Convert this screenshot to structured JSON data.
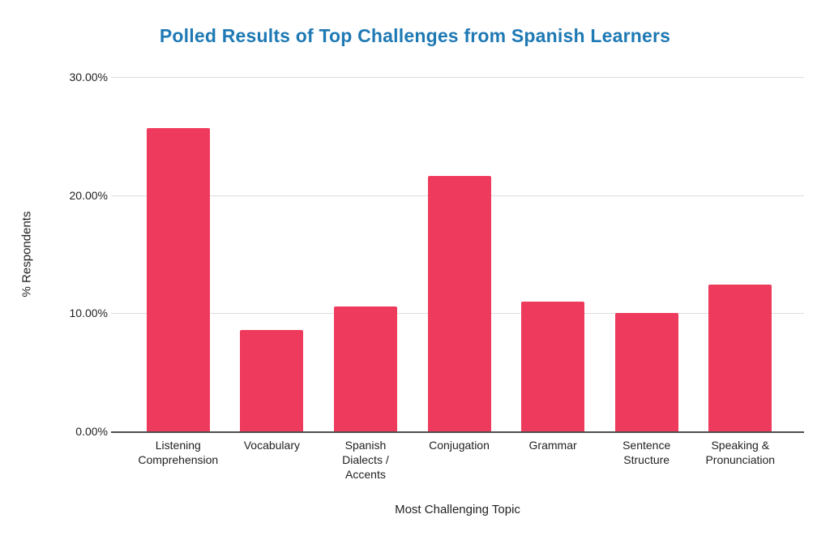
{
  "chart_data": {
    "type": "bar",
    "title": "Polled Results of Top Challenges from Spanish Learners",
    "xlabel": "Most Challenging Topic",
    "ylabel": "% Respondents",
    "categories": [
      "Listening\nComprehension",
      "Vocabulary",
      "Spanish\nDialects /\nAccents",
      "Conjugation",
      "Grammar",
      "Sentence\nStructure",
      "Speaking &\nPronunciation"
    ],
    "values": [
      25.7,
      8.6,
      10.6,
      21.6,
      11.0,
      10.0,
      12.4
    ],
    "ylim": [
      0,
      30
    ],
    "yticks": [
      {
        "label": "0.00%",
        "value": 0
      },
      {
        "label": "10.00%",
        "value": 10
      },
      {
        "label": "20.00%",
        "value": 20
      },
      {
        "label": "30.00%",
        "value": 30
      }
    ],
    "grid": "horizontal",
    "legend": "none",
    "colors": {
      "title": "#1e79b4",
      "bar": "#ee3a5c",
      "gridline": "#dcdcdc",
      "axis_line": "#4f4f4f",
      "text": "#1f1f1f"
    }
  }
}
